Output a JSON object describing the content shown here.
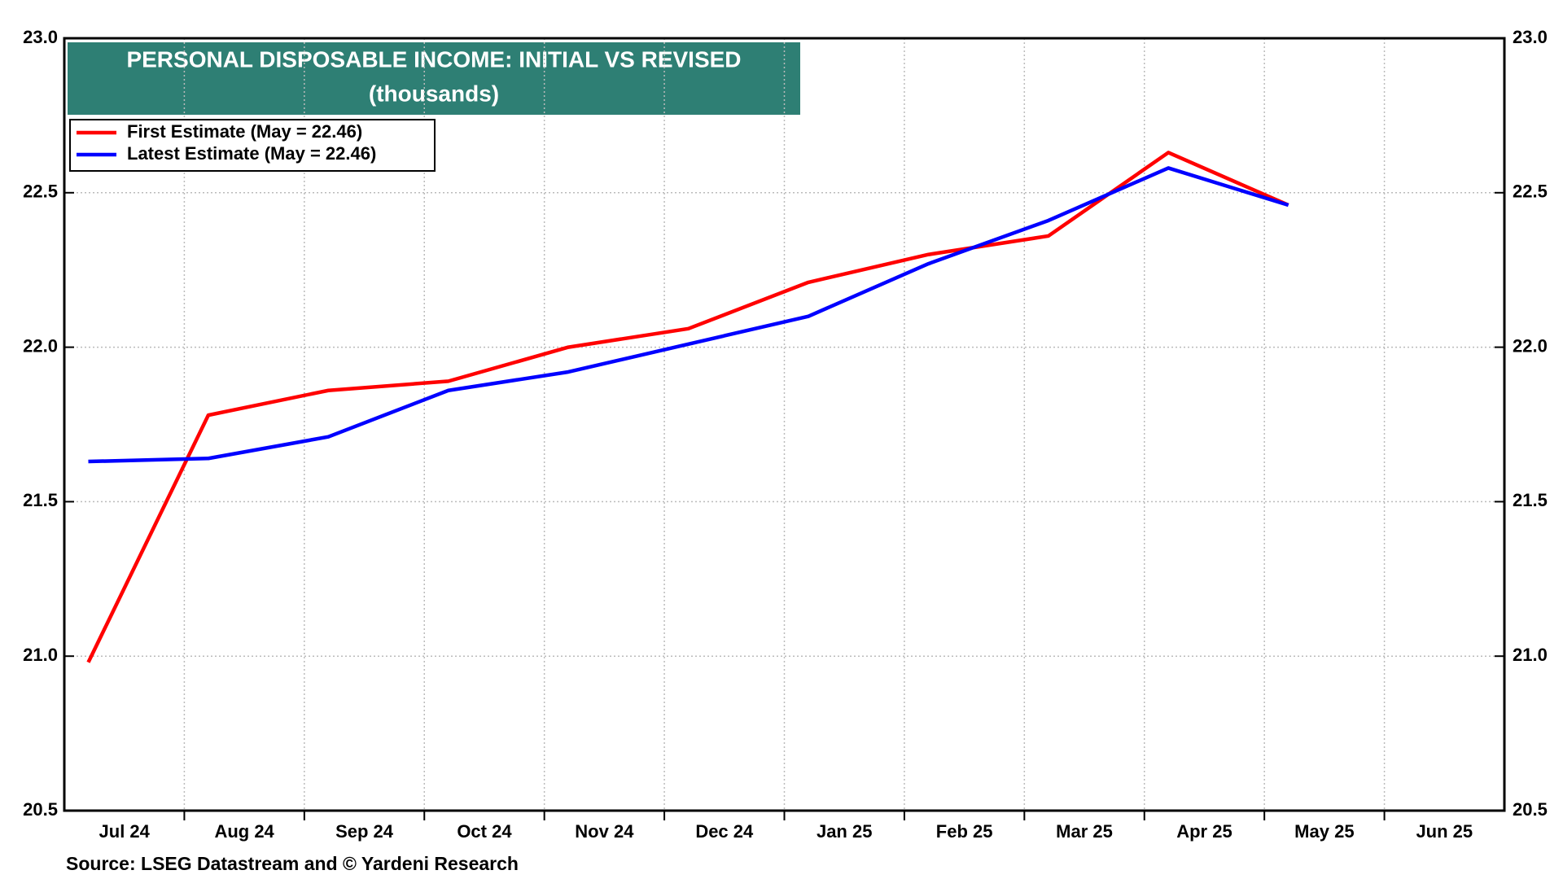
{
  "chart_data": {
    "type": "line",
    "title": "PERSONAL DISPOSABLE INCOME: INITIAL VS REVISED",
    "subtitle": "(thousands)",
    "source": "Source: LSEG Datastream and © Yardeni Research",
    "categories": [
      "Jul 24",
      "Aug 24",
      "Sep 24",
      "Oct 24",
      "Nov 24",
      "Dec 24",
      "Jan 25",
      "Feb 25",
      "Mar 25",
      "Apr 25",
      "May 25",
      "Jun 25"
    ],
    "series": [
      {
        "name": "First Estimate (May = 22.46)",
        "color": "#ff0000",
        "values": [
          20.98,
          21.78,
          21.86,
          21.89,
          22.0,
          22.06,
          22.21,
          22.3,
          22.36,
          22.63,
          22.46,
          null
        ]
      },
      {
        "name": "Latest Estimate (May = 22.46)",
        "color": "#0000ff",
        "values": [
          21.63,
          21.64,
          21.71,
          21.86,
          21.92,
          22.01,
          22.1,
          22.27,
          22.41,
          22.58,
          22.46,
          null
        ]
      }
    ],
    "ylim": [
      20.5,
      23.0
    ],
    "yticks": [
      {
        "value": 20.5,
        "label": "20.5"
      },
      {
        "value": 21,
        "label": "21.0"
      },
      {
        "value": 21.5,
        "label": "21.5"
      },
      {
        "value": 22,
        "label": "22.0"
      },
      {
        "value": 22.5,
        "label": "22.5"
      },
      {
        "value": 23,
        "label": "23.0"
      }
    ],
    "y2lim": [
      20.5,
      23.0
    ],
    "y2ticks": [
      {
        "value": 20.5,
        "label": "20.5"
      },
      {
        "value": 21,
        "label": "21.0"
      },
      {
        "value": 21.5,
        "label": "21.5"
      },
      {
        "value": 22,
        "label": "22.0"
      },
      {
        "value": 22.5,
        "label": "22.5"
      },
      {
        "value": 23,
        "label": "23.0"
      }
    ],
    "grid": true,
    "legend": "upper left",
    "title_color": "#2e7f74"
  }
}
